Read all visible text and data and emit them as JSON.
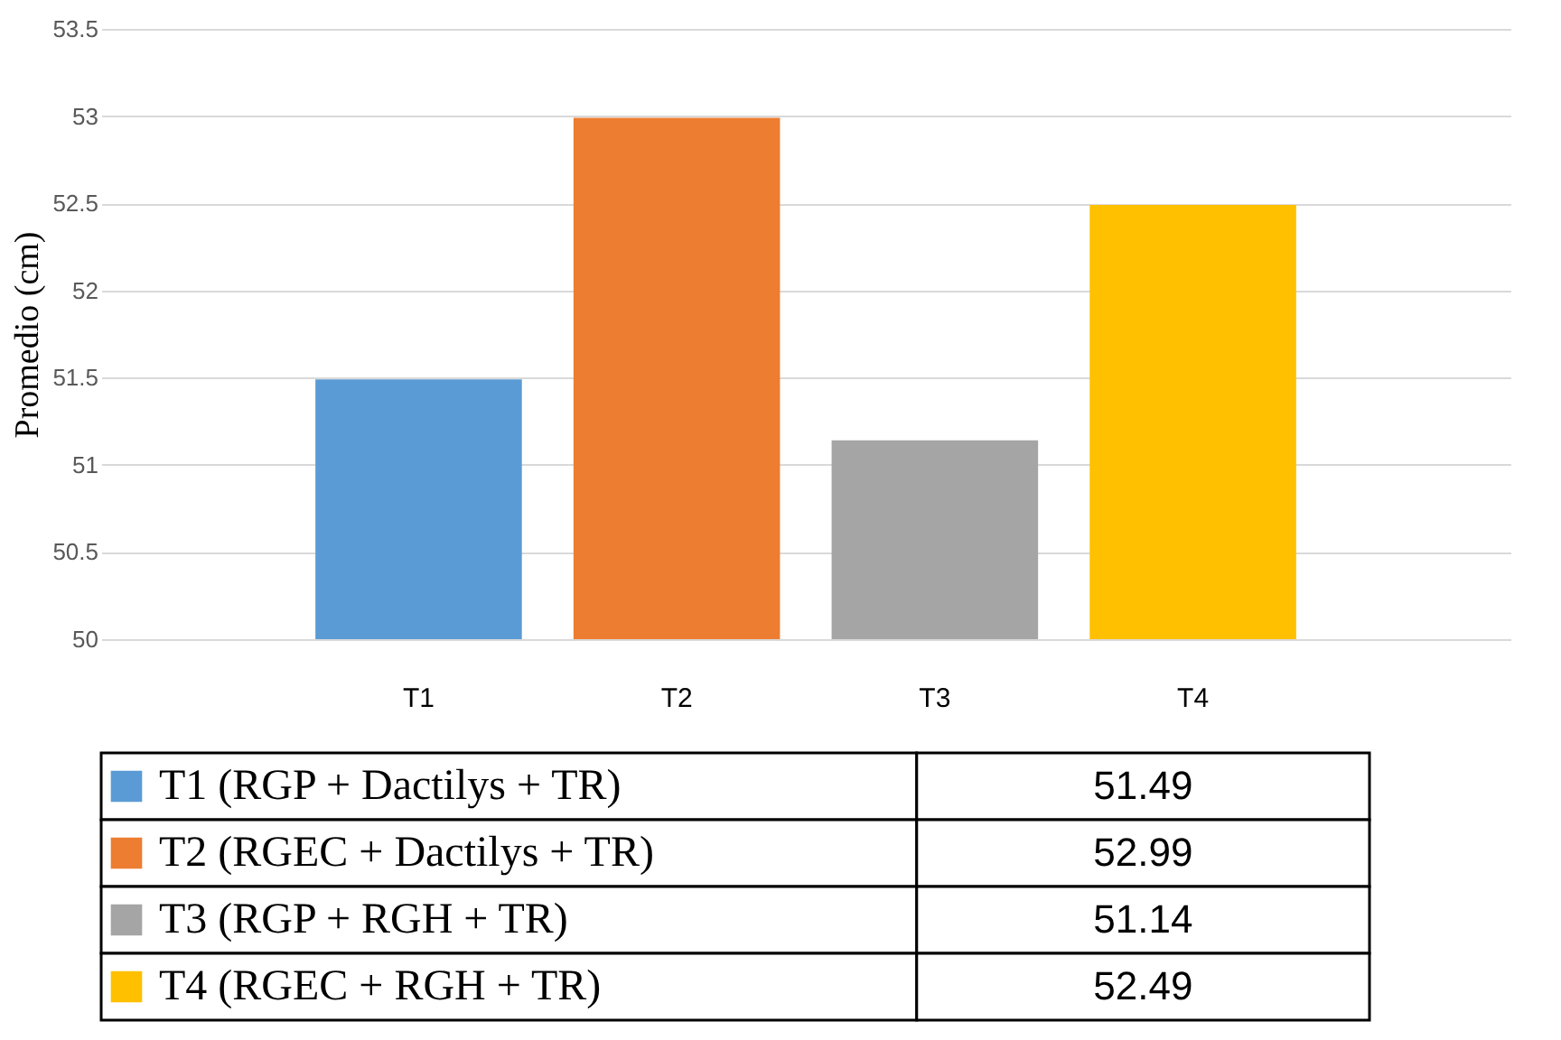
{
  "chart_data": {
    "type": "bar",
    "ylabel": "Promedio (cm)",
    "categories": [
      "T1",
      "T2",
      "T3",
      "T4"
    ],
    "series": [
      {
        "name": "T1 (RGP + Dactilys + TR)",
        "color": "#5b9bd5",
        "values": [
          51.49,
          null,
          null,
          null
        ]
      },
      {
        "name": "T2 (RGEC + Dactilys + TR)",
        "color": "#ed7d31",
        "values": [
          null,
          52.99,
          null,
          null
        ]
      },
      {
        "name": "T3 (RGP + RGH + TR)",
        "color": "#a5a5a5",
        "values": [
          null,
          null,
          51.14,
          null
        ]
      },
      {
        "name": "T4 (RGEC + RGH + TR)",
        "color": "#ffc000",
        "values": [
          null,
          null,
          null,
          52.49
        ]
      }
    ],
    "ylim": [
      50,
      53.5
    ],
    "yticks": [
      50,
      50.5,
      51,
      51.5,
      52,
      52.5,
      53,
      53.5
    ],
    "grid": true,
    "annotations": [
      "51.49",
      "52.99",
      "51.14",
      "52.49"
    ],
    "legend": "bottom"
  }
}
